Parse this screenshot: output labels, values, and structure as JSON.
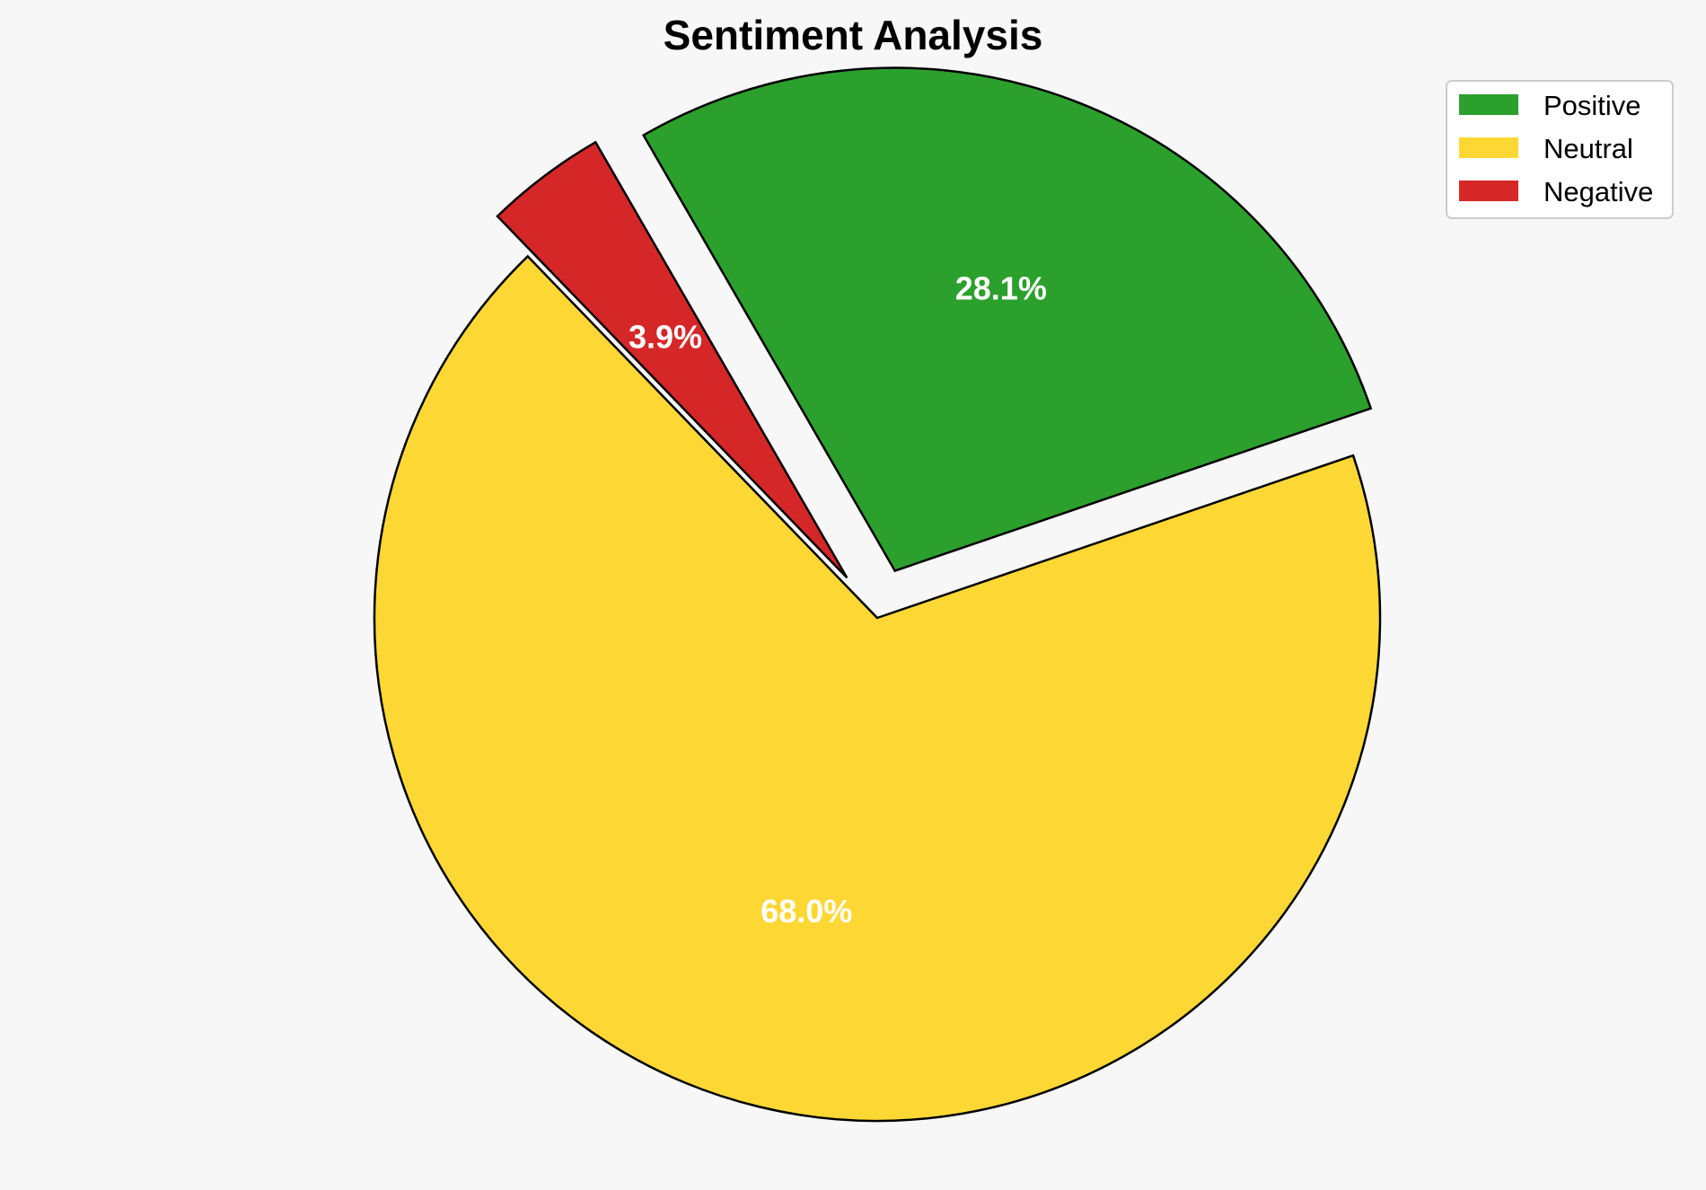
{
  "chart_data": {
    "type": "pie",
    "title": "Sentiment Analysis",
    "categories": [
      "Positive",
      "Neutral",
      "Negative"
    ],
    "values": [
      28.1,
      68.0,
      3.9
    ],
    "labels": [
      "28.1%",
      "68.0%",
      "3.9%"
    ],
    "colors": [
      "#2ca02c",
      "#fdd835",
      "#d62728"
    ],
    "exploded": [
      true,
      false,
      true
    ],
    "legend": {
      "position": "top-right",
      "entries": [
        "Positive",
        "Neutral",
        "Negative"
      ]
    }
  }
}
